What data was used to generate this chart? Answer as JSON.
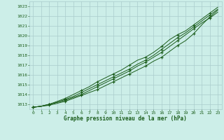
{
  "title": "Graphe pression niveau de la mer (hPa)",
  "bg_color": "#cceee8",
  "grid_color": "#aacccc",
  "line_color": "#1a5c1a",
  "marker_color": "#1a5c1a",
  "ylim": [
    1012.5,
    1023.5
  ],
  "xlim": [
    -0.5,
    23.5
  ],
  "yticks": [
    1013,
    1014,
    1015,
    1016,
    1017,
    1018,
    1019,
    1020,
    1021,
    1022,
    1023
  ],
  "xticks": [
    0,
    1,
    2,
    3,
    4,
    5,
    6,
    7,
    8,
    9,
    10,
    11,
    12,
    13,
    14,
    15,
    16,
    17,
    18,
    19,
    20,
    21,
    22,
    23
  ],
  "series": [
    [
      1012.7,
      1012.8,
      1012.9,
      1013.1,
      1013.3,
      1013.6,
      1013.9,
      1014.2,
      1014.5,
      1014.9,
      1015.3,
      1015.7,
      1016.1,
      1016.5,
      1016.9,
      1017.4,
      1017.8,
      1018.4,
      1019.0,
      1019.5,
      1020.2,
      1021.1,
      1021.9,
      1022.6
    ],
    [
      1012.7,
      1012.8,
      1013.0,
      1013.2,
      1013.4,
      1013.7,
      1014.0,
      1014.4,
      1014.8,
      1015.2,
      1015.6,
      1016.0,
      1016.4,
      1016.9,
      1017.3,
      1017.8,
      1018.3,
      1018.9,
      1019.5,
      1020.1,
      1020.7,
      1021.3,
      1021.8,
      1022.4
    ],
    [
      1012.7,
      1012.8,
      1013.0,
      1013.2,
      1013.5,
      1013.8,
      1014.2,
      1014.6,
      1015.0,
      1015.4,
      1015.8,
      1016.2,
      1016.6,
      1017.1,
      1017.5,
      1018.0,
      1018.6,
      1019.2,
      1019.8,
      1020.3,
      1020.9,
      1021.5,
      1022.1,
      1022.7
    ],
    [
      1012.7,
      1012.8,
      1013.0,
      1013.3,
      1013.6,
      1014.0,
      1014.4,
      1014.8,
      1015.3,
      1015.7,
      1016.1,
      1016.5,
      1017.0,
      1017.5,
      1017.8,
      1018.3,
      1018.9,
      1019.6,
      1020.1,
      1020.5,
      1021.1,
      1021.7,
      1022.3,
      1022.9
    ]
  ]
}
